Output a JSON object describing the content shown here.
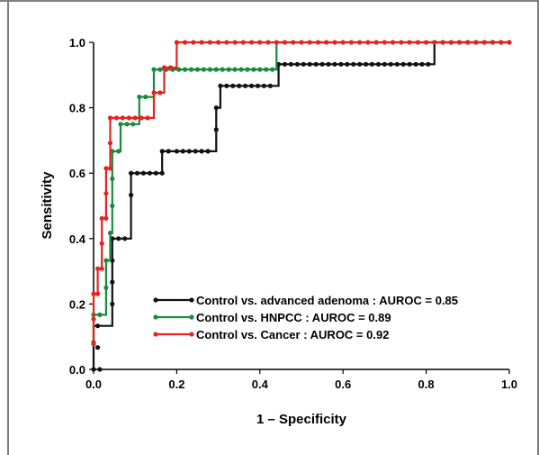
{
  "chart_data": {
    "type": "line",
    "title": "",
    "xlabel": "1 – Specificity",
    "ylabel": "Sensitivity",
    "xlim": [
      0,
      1
    ],
    "ylim": [
      0,
      1
    ],
    "x_ticks": [
      "0.0",
      "0.2",
      "0.4",
      "0.6",
      "0.8",
      "1.0"
    ],
    "y_ticks": [
      "0.0",
      "0.2",
      "0.4",
      "0.6",
      "0.8",
      "1.0"
    ],
    "grid": false,
    "legend_position": "bottom-right-center",
    "series": [
      {
        "name": "Control vs. advanced adenoma : AUROC = 0.85",
        "color": "#111111",
        "points": [
          [
            0.0,
            0.0
          ],
          [
            0.0,
            0.067
          ],
          [
            0.0,
            0.133
          ],
          [
            0.045,
            0.133
          ],
          [
            0.045,
            0.4
          ],
          [
            0.09,
            0.4
          ],
          [
            0.09,
            0.6
          ],
          [
            0.165,
            0.6
          ],
          [
            0.165,
            0.667
          ],
          [
            0.295,
            0.667
          ],
          [
            0.295,
            0.8
          ],
          [
            0.305,
            0.8
          ],
          [
            0.305,
            0.867
          ],
          [
            0.445,
            0.867
          ],
          [
            0.445,
            0.933
          ],
          [
            0.82,
            0.933
          ],
          [
            0.82,
            1.0
          ],
          [
            1.0,
            1.0
          ]
        ],
        "markers": [
          [
            0.0,
            0.0
          ],
          [
            0.015,
            0.0
          ],
          [
            0.01,
            0.067
          ],
          [
            0.01,
            0.133
          ],
          [
            0.045,
            0.2
          ],
          [
            0.045,
            0.267
          ],
          [
            0.045,
            0.333
          ],
          [
            0.045,
            0.4
          ],
          [
            0.06,
            0.4
          ],
          [
            0.075,
            0.4
          ],
          [
            0.09,
            0.533
          ],
          [
            0.09,
            0.6
          ],
          [
            0.105,
            0.6
          ],
          [
            0.12,
            0.6
          ],
          [
            0.135,
            0.6
          ],
          [
            0.15,
            0.6
          ],
          [
            0.165,
            0.6
          ],
          [
            0.165,
            0.667
          ],
          [
            0.18,
            0.667
          ],
          [
            0.2,
            0.667
          ],
          [
            0.215,
            0.667
          ],
          [
            0.23,
            0.667
          ],
          [
            0.245,
            0.667
          ],
          [
            0.26,
            0.667
          ],
          [
            0.275,
            0.667
          ],
          [
            0.295,
            0.733
          ],
          [
            0.295,
            0.8
          ],
          [
            0.305,
            0.867
          ],
          [
            0.32,
            0.867
          ],
          [
            0.335,
            0.867
          ],
          [
            0.35,
            0.867
          ],
          [
            0.365,
            0.867
          ],
          [
            0.38,
            0.867
          ],
          [
            0.395,
            0.867
          ],
          [
            0.41,
            0.867
          ],
          [
            0.425,
            0.867
          ],
          [
            0.445,
            0.933
          ],
          [
            0.46,
            0.933
          ],
          [
            0.475,
            0.933
          ],
          [
            0.49,
            0.933
          ],
          [
            0.505,
            0.933
          ],
          [
            0.52,
            0.933
          ],
          [
            0.535,
            0.933
          ],
          [
            0.55,
            0.933
          ],
          [
            0.565,
            0.933
          ],
          [
            0.58,
            0.933
          ],
          [
            0.595,
            0.933
          ],
          [
            0.61,
            0.933
          ],
          [
            0.625,
            0.933
          ],
          [
            0.64,
            0.933
          ],
          [
            0.655,
            0.933
          ],
          [
            0.67,
            0.933
          ],
          [
            0.685,
            0.933
          ],
          [
            0.7,
            0.933
          ],
          [
            0.715,
            0.933
          ],
          [
            0.73,
            0.933
          ],
          [
            0.745,
            0.933
          ],
          [
            0.76,
            0.933
          ],
          [
            0.775,
            0.933
          ],
          [
            0.79,
            0.933
          ],
          [
            0.805,
            0.933
          ],
          [
            0.82,
            1.0
          ],
          [
            0.84,
            1.0
          ],
          [
            0.86,
            1.0
          ],
          [
            0.88,
            1.0
          ],
          [
            0.9,
            1.0
          ],
          [
            0.92,
            1.0
          ],
          [
            0.94,
            1.0
          ],
          [
            0.96,
            1.0
          ],
          [
            0.98,
            1.0
          ],
          [
            1.0,
            1.0
          ]
        ]
      },
      {
        "name": "Control vs. HNPCC : AUROC = 0.89",
        "color": "#1a8a3e",
        "points": [
          [
            0.0,
            0.083
          ],
          [
            0.0,
            0.167
          ],
          [
            0.03,
            0.167
          ],
          [
            0.03,
            0.333
          ],
          [
            0.04,
            0.333
          ],
          [
            0.04,
            0.417
          ],
          [
            0.045,
            0.417
          ],
          [
            0.045,
            0.667
          ],
          [
            0.065,
            0.667
          ],
          [
            0.065,
            0.75
          ],
          [
            0.11,
            0.75
          ],
          [
            0.11,
            0.833
          ],
          [
            0.145,
            0.833
          ],
          [
            0.145,
            0.917
          ],
          [
            0.44,
            0.917
          ],
          [
            0.44,
            1.0
          ],
          [
            1.0,
            1.0
          ]
        ],
        "markers": [
          [
            0.0,
            0.083
          ],
          [
            0.0,
            0.167
          ],
          [
            0.015,
            0.167
          ],
          [
            0.03,
            0.25
          ],
          [
            0.03,
            0.333
          ],
          [
            0.04,
            0.417
          ],
          [
            0.045,
            0.5
          ],
          [
            0.045,
            0.583
          ],
          [
            0.045,
            0.667
          ],
          [
            0.06,
            0.667
          ],
          [
            0.065,
            0.75
          ],
          [
            0.08,
            0.75
          ],
          [
            0.095,
            0.75
          ],
          [
            0.11,
            0.833
          ],
          [
            0.125,
            0.833
          ],
          [
            0.145,
            0.917
          ],
          [
            0.16,
            0.917
          ],
          [
            0.175,
            0.917
          ],
          [
            0.19,
            0.917
          ],
          [
            0.205,
            0.917
          ],
          [
            0.22,
            0.917
          ],
          [
            0.235,
            0.917
          ],
          [
            0.25,
            0.917
          ],
          [
            0.265,
            0.917
          ],
          [
            0.28,
            0.917
          ],
          [
            0.295,
            0.917
          ],
          [
            0.31,
            0.917
          ],
          [
            0.325,
            0.917
          ],
          [
            0.34,
            0.917
          ],
          [
            0.355,
            0.917
          ],
          [
            0.37,
            0.917
          ],
          [
            0.385,
            0.917
          ],
          [
            0.4,
            0.917
          ],
          [
            0.415,
            0.917
          ],
          [
            0.43,
            0.917
          ]
        ]
      },
      {
        "name": "Control vs. Cancer  : AUROC = 0.92",
        "color": "#e52421",
        "points": [
          [
            0.0,
            0.077
          ],
          [
            0.0,
            0.154
          ],
          [
            0.0,
            0.231
          ],
          [
            0.01,
            0.231
          ],
          [
            0.01,
            0.308
          ],
          [
            0.02,
            0.308
          ],
          [
            0.02,
            0.462
          ],
          [
            0.03,
            0.462
          ],
          [
            0.03,
            0.615
          ],
          [
            0.04,
            0.615
          ],
          [
            0.04,
            0.769
          ],
          [
            0.145,
            0.769
          ],
          [
            0.145,
            0.846
          ],
          [
            0.17,
            0.846
          ],
          [
            0.17,
            0.923
          ],
          [
            0.2,
            0.923
          ],
          [
            0.2,
            1.0
          ],
          [
            1.0,
            1.0
          ]
        ],
        "markers": [
          [
            0.0,
            0.077
          ],
          [
            0.0,
            0.154
          ],
          [
            0.0,
            0.231
          ],
          [
            0.01,
            0.231
          ],
          [
            0.01,
            0.308
          ],
          [
            0.02,
            0.308
          ],
          [
            0.02,
            0.385
          ],
          [
            0.02,
            0.462
          ],
          [
            0.03,
            0.462
          ],
          [
            0.03,
            0.538
          ],
          [
            0.03,
            0.615
          ],
          [
            0.04,
            0.615
          ],
          [
            0.04,
            0.692
          ],
          [
            0.04,
            0.769
          ],
          [
            0.055,
            0.769
          ],
          [
            0.07,
            0.769
          ],
          [
            0.085,
            0.769
          ],
          [
            0.1,
            0.769
          ],
          [
            0.115,
            0.769
          ],
          [
            0.13,
            0.769
          ],
          [
            0.145,
            0.846
          ],
          [
            0.16,
            0.846
          ],
          [
            0.17,
            0.923
          ],
          [
            0.185,
            0.923
          ],
          [
            0.2,
            1.0
          ],
          [
            0.22,
            1.0
          ],
          [
            0.24,
            1.0
          ],
          [
            0.26,
            1.0
          ],
          [
            0.28,
            1.0
          ],
          [
            0.3,
            1.0
          ],
          [
            0.32,
            1.0
          ],
          [
            0.34,
            1.0
          ],
          [
            0.36,
            1.0
          ],
          [
            0.38,
            1.0
          ],
          [
            0.4,
            1.0
          ],
          [
            0.42,
            1.0
          ],
          [
            0.44,
            1.0
          ],
          [
            0.46,
            1.0
          ],
          [
            0.48,
            1.0
          ],
          [
            0.5,
            1.0
          ],
          [
            0.52,
            1.0
          ],
          [
            0.54,
            1.0
          ],
          [
            0.56,
            1.0
          ],
          [
            0.58,
            1.0
          ],
          [
            0.6,
            1.0
          ],
          [
            0.62,
            1.0
          ],
          [
            0.64,
            1.0
          ],
          [
            0.66,
            1.0
          ],
          [
            0.68,
            1.0
          ],
          [
            0.7,
            1.0
          ],
          [
            0.72,
            1.0
          ],
          [
            0.74,
            1.0
          ],
          [
            0.76,
            1.0
          ],
          [
            0.78,
            1.0
          ],
          [
            0.8,
            1.0
          ],
          [
            0.82,
            1.0
          ],
          [
            0.84,
            1.0
          ],
          [
            0.86,
            1.0
          ],
          [
            0.88,
            1.0
          ],
          [
            0.9,
            1.0
          ],
          [
            0.92,
            1.0
          ],
          [
            0.94,
            1.0
          ],
          [
            0.96,
            1.0
          ],
          [
            0.98,
            1.0
          ],
          [
            1.0,
            1.0
          ]
        ]
      }
    ]
  }
}
